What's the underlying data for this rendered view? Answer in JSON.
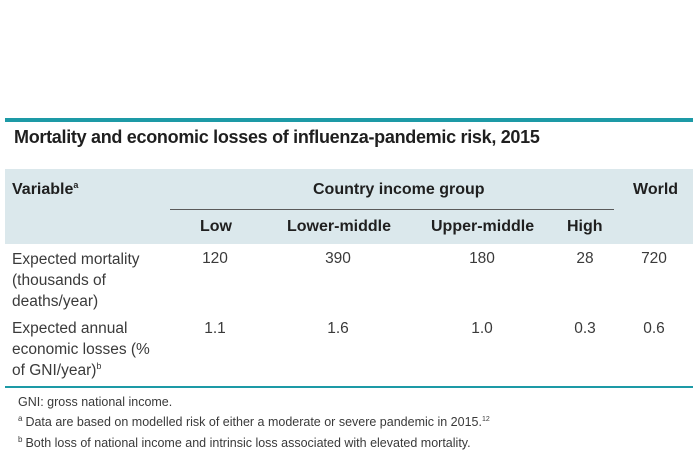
{
  "title": "Mortality and economic losses of influenza-pandemic risk, 2015",
  "header": {
    "variable": "Variable",
    "variable_note": "a",
    "group": "Country income group",
    "world": "World",
    "columns": [
      "Low",
      "Lower-middle",
      "Upper-middle",
      "High"
    ]
  },
  "rows": [
    {
      "label_lines": [
        "Expected mortality",
        "(thousands of",
        "deaths/year)"
      ],
      "values": [
        "120",
        "390",
        "180",
        "28"
      ],
      "world": "720"
    },
    {
      "label_lines": [
        "Expected annual",
        "economic losses (%",
        "of GNI/year)"
      ],
      "label_note": "b",
      "values": [
        "1.1",
        "1.6",
        "1.0",
        "0.3"
      ],
      "world": "0.6"
    }
  ],
  "notes": {
    "gni": "GNI: gross national income.",
    "a_mark": "a",
    "a_text": "Data are based on modelled risk of either a moderate or severe pandemic in 2015.",
    "a_ref": "12",
    "b_mark": "b",
    "b_text": "Both loss of national income and intrinsic loss associated with elevated mortality."
  }
}
